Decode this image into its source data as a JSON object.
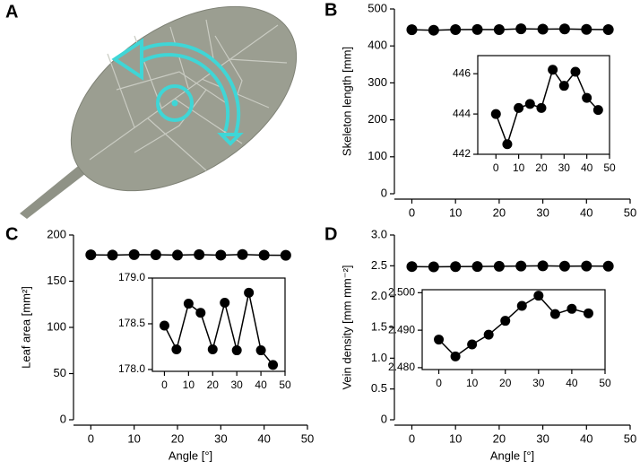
{
  "image_panel": {
    "label": "A"
  },
  "chart_data": [
    {
      "type": "line",
      "panel": "B",
      "ylabel": "Skeleton length [mm]",
      "x": [
        0,
        5,
        10,
        15,
        20,
        25,
        30,
        35,
        40,
        45
      ],
      "values": [
        444.0,
        442.5,
        444.3,
        444.5,
        444.3,
        446.2,
        445.4,
        446.1,
        444.8,
        444.2
      ],
      "color": "#000000",
      "xlim": [
        -4,
        50
      ],
      "xticks": [
        0,
        10,
        20,
        30,
        40,
        50
      ],
      "ylim": [
        0,
        500
      ],
      "yticks": [
        0,
        100,
        200,
        300,
        400,
        500
      ]
    },
    {
      "type": "line",
      "x": [
        0,
        5,
        10,
        15,
        20,
        25,
        30,
        35,
        40,
        45
      ],
      "values": [
        444.0,
        442.5,
        444.3,
        444.5,
        444.3,
        446.2,
        445.4,
        446.1,
        444.8,
        444.2
      ],
      "color": "#000000",
      "xlim": [
        -8,
        50
      ],
      "xticks": [
        0,
        10,
        20,
        30,
        40,
        50
      ],
      "ylim": [
        442,
        446.9
      ],
      "yticks": [
        442,
        444,
        446
      ]
    },
    {
      "type": "line",
      "panel": "C",
      "ylabel": "Leaf area [mm²]",
      "xlabel": "Angle [°]",
      "x": [
        0,
        5,
        10,
        15,
        20,
        25,
        30,
        35,
        40,
        45
      ],
      "values": [
        178.48,
        178.22,
        178.72,
        178.62,
        178.22,
        178.73,
        178.21,
        178.84,
        178.21,
        178.05
      ],
      "color": "#000000",
      "xlim": [
        -4,
        50
      ],
      "xticks": [
        0,
        10,
        20,
        30,
        40,
        50
      ],
      "ylim": [
        0,
        200
      ],
      "yticks": [
        0,
        50,
        100,
        150,
        200
      ]
    },
    {
      "type": "line",
      "x": [
        0,
        5,
        10,
        15,
        20,
        25,
        30,
        35,
        40,
        45
      ],
      "values": [
        178.48,
        178.22,
        178.72,
        178.62,
        178.22,
        178.73,
        178.21,
        178.84,
        178.21,
        178.05
      ],
      "color": "#000000",
      "xlim": [
        -5,
        50
      ],
      "xticks": [
        0,
        10,
        20,
        30,
        40,
        50
      ],
      "ylim": [
        177.98,
        179.0
      ],
      "yticks": [
        {
          "value": 178,
          "label": "178.0"
        },
        178.5,
        {
          "value": 179,
          "label": "179.0"
        }
      ]
    },
    {
      "type": "line",
      "panel": "D",
      "ylabel": "Vein density [mm mm⁻²]",
      "xlabel": "Angle [°]",
      "x": [
        0,
        5,
        10,
        15,
        20,
        25,
        30,
        35,
        40,
        45
      ],
      "values": [
        2.4875,
        2.483,
        2.4862,
        2.4888,
        2.4925,
        2.4965,
        2.4992,
        2.4943,
        2.4957,
        2.4945
      ],
      "color": "#000000",
      "xlim": [
        -4,
        50
      ],
      "xticks": [
        0,
        10,
        20,
        30,
        40,
        50
      ],
      "ylim": [
        0,
        3
      ],
      "yticks": [
        0,
        0.5,
        {
          "value": 1,
          "label": "1.0"
        },
        1.5,
        {
          "value": 2,
          "label": "2.0"
        },
        2.5,
        {
          "value": 3,
          "label": "3.0"
        }
      ]
    },
    {
      "type": "line",
      "x": [
        0,
        5,
        10,
        15,
        20,
        25,
        30,
        35,
        40,
        45
      ],
      "values": [
        2.4875,
        2.483,
        2.4862,
        2.4888,
        2.4925,
        2.4965,
        2.4992,
        2.4943,
        2.4957,
        2.4945
      ],
      "color": "#000000",
      "xlim": [
        -5,
        50
      ],
      "xticks": [
        0,
        10,
        20,
        30,
        40,
        50
      ],
      "ylim": [
        2.4795,
        2.5008
      ],
      "yticks": [
        {
          "value": 2.48,
          "label": "2.480"
        },
        {
          "value": 2.49,
          "label": "2.490"
        },
        {
          "value": 2.5,
          "label": "2.500"
        }
      ]
    }
  ]
}
